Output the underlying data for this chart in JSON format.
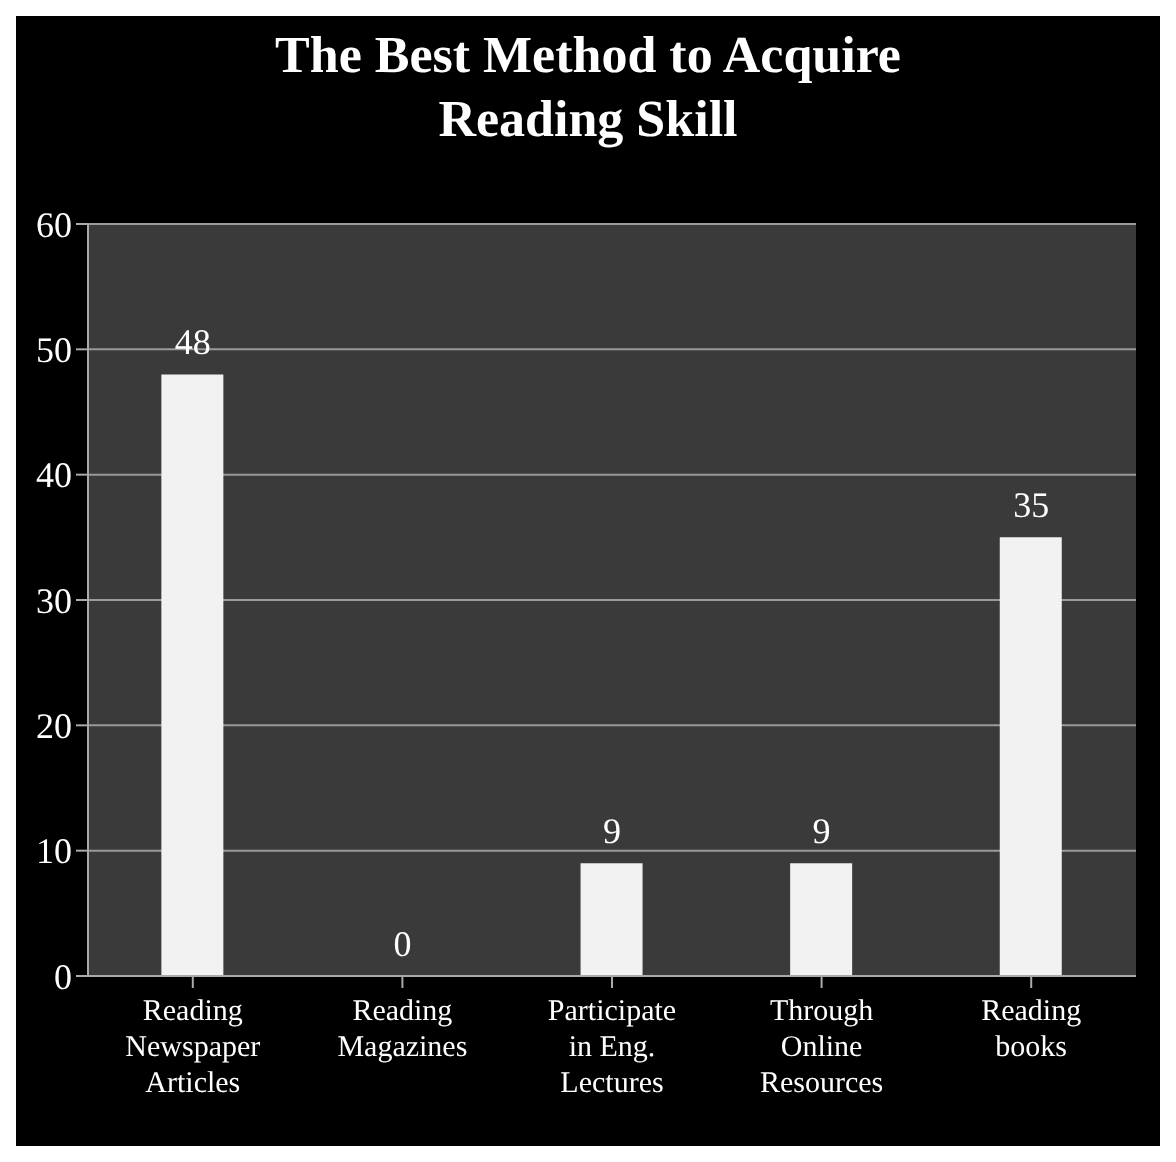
{
  "chart_data": {
    "type": "bar",
    "title": "The Best Method to Acquire Reading Skill",
    "categories": [
      "Reading Newspaper Articles",
      "Reading Magazines",
      "Participate in Eng. Lectures",
      "Through Online Resources",
      "Reading books"
    ],
    "values": [
      48,
      0,
      9,
      9,
      35
    ],
    "color": "#f2f2f2",
    "ylim": [
      0,
      60
    ],
    "yticks": [
      0,
      10,
      20,
      30,
      40,
      50,
      60
    ],
    "grid": "y",
    "data_labels": true
  }
}
